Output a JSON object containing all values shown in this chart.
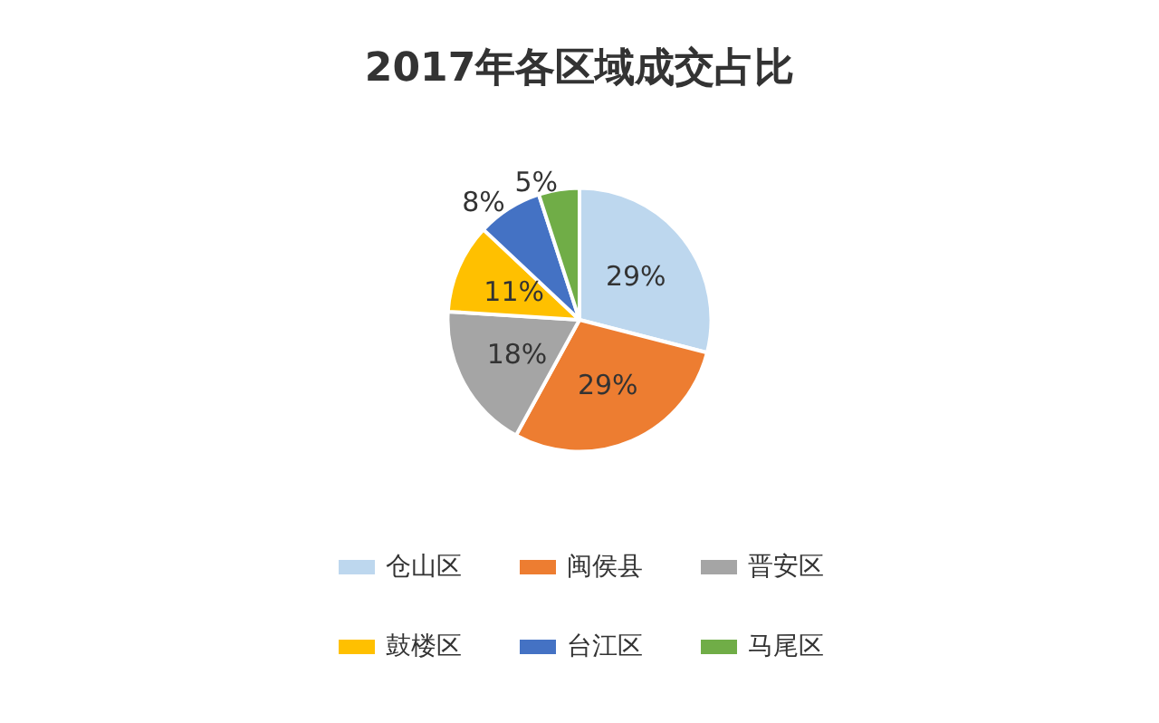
{
  "chart_data": {
    "type": "pie",
    "title": "2017年各区域成交占比",
    "categories": [
      "仓山区",
      "闽侯县",
      "晋安区",
      "鼓楼区",
      "台江区",
      "马尾区"
    ],
    "values": [
      29,
      29,
      18,
      11,
      8,
      5
    ],
    "value_labels": [
      "29%",
      "29%",
      "18%",
      "11%",
      "8%",
      "5%"
    ],
    "colors": [
      "#bdd7ee",
      "#ed7d31",
      "#a5a5a5",
      "#ffc000",
      "#4472c4",
      "#70ad47"
    ],
    "legend": "bottom"
  }
}
